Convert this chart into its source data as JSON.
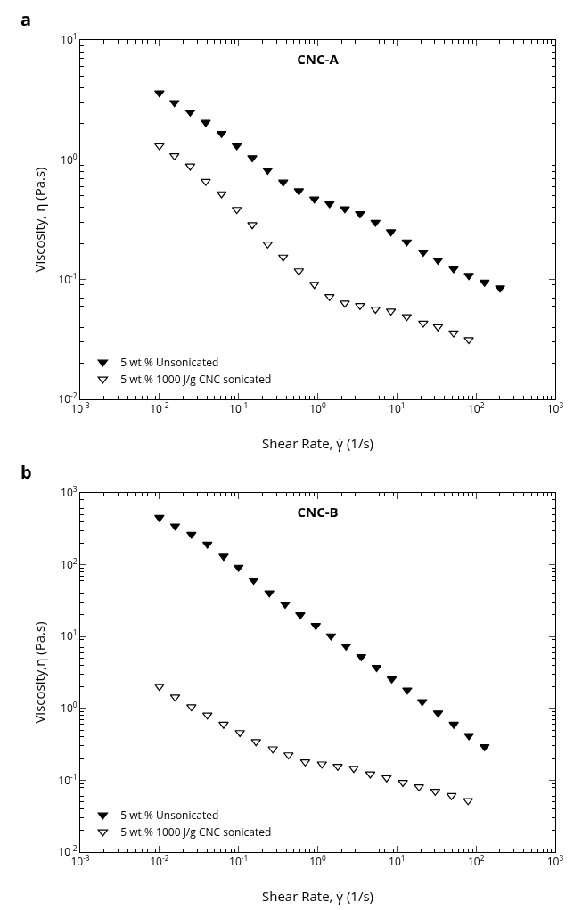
{
  "chart_data": [
    {
      "type": "scatter",
      "title": "CNC-A",
      "xlabel": "Shear Rate, γ̇ (1/s)",
      "ylabel": "Viscosity, η (Pa.s)",
      "annotations": [
        "a"
      ],
      "log": "xy",
      "grid": false,
      "legend": "bottom left",
      "xlim": [
        0.001,
        1000
      ],
      "xticks": [
        {
          "value": 0.001,
          "label": "10$^{-3}$"
        },
        {
          "value": 0.01,
          "label": "10$^{-2}$"
        },
        {
          "value": 0.1,
          "label": "10$^{-1}$"
        },
        {
          "value": 1,
          "label": "10$^{0}$"
        },
        {
          "value": 10,
          "label": "10$^{1}$"
        },
        {
          "value": 100,
          "label": "10$^{2}$"
        },
        {
          "value": 1000,
          "label": "10$^{3}$"
        }
      ],
      "ylim": [
        0.01,
        10
      ],
      "yticks": [
        {
          "value": 0.01,
          "label": "10$^{-2}$"
        },
        {
          "value": 0.1,
          "label": "10$^{-1}$"
        },
        {
          "value": 1,
          "label": "10$^{0}$"
        },
        {
          "value": 10,
          "label": "10$^{1}$"
        }
      ],
      "series": [
        {
          "name": "5 wt.% Unsonicated",
          "color": "#000000",
          "marker": "triangle-down",
          "x": [
            0.01,
            0.0155,
            0.0245,
            0.0385,
            0.061,
            0.095,
            0.149,
            0.233,
            0.366,
            0.578,
            0.906,
            1.41,
            2.2,
            3.42,
            5.36,
            8.4,
            13.3,
            21.5,
            33,
            52,
            81,
            128,
            201
          ],
          "values": [
            3.62,
            3.0,
            2.5,
            2.05,
            1.66,
            1.31,
            1.04,
            0.82,
            0.65,
            0.55,
            0.47,
            0.43,
            0.39,
            0.354,
            0.3,
            0.25,
            0.206,
            0.169,
            0.145,
            0.123,
            0.108,
            0.095,
            0.085
          ]
        },
        {
          "name": "5 wt.% 1000 J/g CNC sonicated",
          "color": "#000000",
          "marker": "triangle-down-open",
          "x": [
            0.01,
            0.0155,
            0.0245,
            0.0385,
            0.061,
            0.095,
            0.149,
            0.233,
            0.366,
            0.578,
            0.906,
            1.41,
            2.2,
            3.42,
            5.36,
            8.4,
            13.3,
            21.5,
            33,
            52,
            81
          ],
          "values": [
            1.31,
            1.08,
            0.885,
            0.66,
            0.52,
            0.385,
            0.287,
            0.198,
            0.154,
            0.118,
            0.091,
            0.072,
            0.0635,
            0.0606,
            0.0565,
            0.0545,
            0.049,
            0.0432,
            0.0403,
            0.0358,
            0.0315
          ]
        }
      ]
    },
    {
      "type": "scatter",
      "title": "CNC-B",
      "xlabel": "Shear Rate, γ̇ (1/s)",
      "ylabel": "Viscosity,η (Pa.s)",
      "annotations": [
        "b"
      ],
      "log": "xy",
      "grid": false,
      "legend": "bottom left",
      "xlim": [
        0.001,
        1000
      ],
      "xticks": [
        {
          "value": 0.001,
          "label": "10$^{-3}$"
        },
        {
          "value": 0.01,
          "label": "10$^{-2}$"
        },
        {
          "value": 0.1,
          "label": "10$^{-1}$"
        },
        {
          "value": 1,
          "label": "10$^{0}$"
        },
        {
          "value": 10,
          "label": "10$^{1}$"
        },
        {
          "value": 100,
          "label": "10$^{2}$"
        },
        {
          "value": 1000,
          "label": "10$^{3}$"
        }
      ],
      "ylim": [
        0.01,
        1000
      ],
      "yticks": [
        {
          "value": 0.01,
          "label": "10$^{-2}$"
        },
        {
          "value": 0.1,
          "label": "10$^{-1}$"
        },
        {
          "value": 1,
          "label": "10$^{0}$"
        },
        {
          "value": 10,
          "label": "10$^{1}$"
        },
        {
          "value": 100,
          "label": "10$^{2}$"
        },
        {
          "value": 1000,
          "label": "10$^{3}$"
        }
      ],
      "series": [
        {
          "name": "5 wt.% Unsonicated",
          "color": "#000000",
          "marker": "triangle-down",
          "x": [
            0.01,
            0.0158,
            0.0254,
            0.0404,
            0.0648,
            0.1,
            0.155,
            0.245,
            0.388,
            0.602,
            0.944,
            1.47,
            2.28,
            3.54,
            5.54,
            8.61,
            13.5,
            20.9,
            33.1,
            52.3,
            81.2,
            128
          ],
          "values": [
            453,
            345,
            264,
            193,
            131,
            92,
            60.6,
            40.4,
            28.2,
            20,
            14.2,
            10.2,
            7.37,
            5.25,
            3.71,
            2.57,
            1.8,
            1.24,
            0.86,
            0.6,
            0.417,
            0.292
          ]
        },
        {
          "name": "5 wt.% 1000 J/g CNC sonicated",
          "color": "#000000",
          "marker": "triangle-down-open",
          "x": [
            0.01,
            0.0158,
            0.0254,
            0.0404,
            0.0648,
            0.104,
            0.166,
            0.271,
            0.428,
            0.694,
            1.13,
            1.79,
            2.85,
            4.61,
            7.41,
            11.9,
            19,
            30.5,
            49,
            79.3
          ],
          "values": [
            2.02,
            1.44,
            1.05,
            0.805,
            0.6,
            0.46,
            0.344,
            0.273,
            0.225,
            0.18,
            0.168,
            0.156,
            0.146,
            0.122,
            0.108,
            0.093,
            0.081,
            0.07,
            0.061,
            0.052
          ]
        }
      ]
    }
  ]
}
